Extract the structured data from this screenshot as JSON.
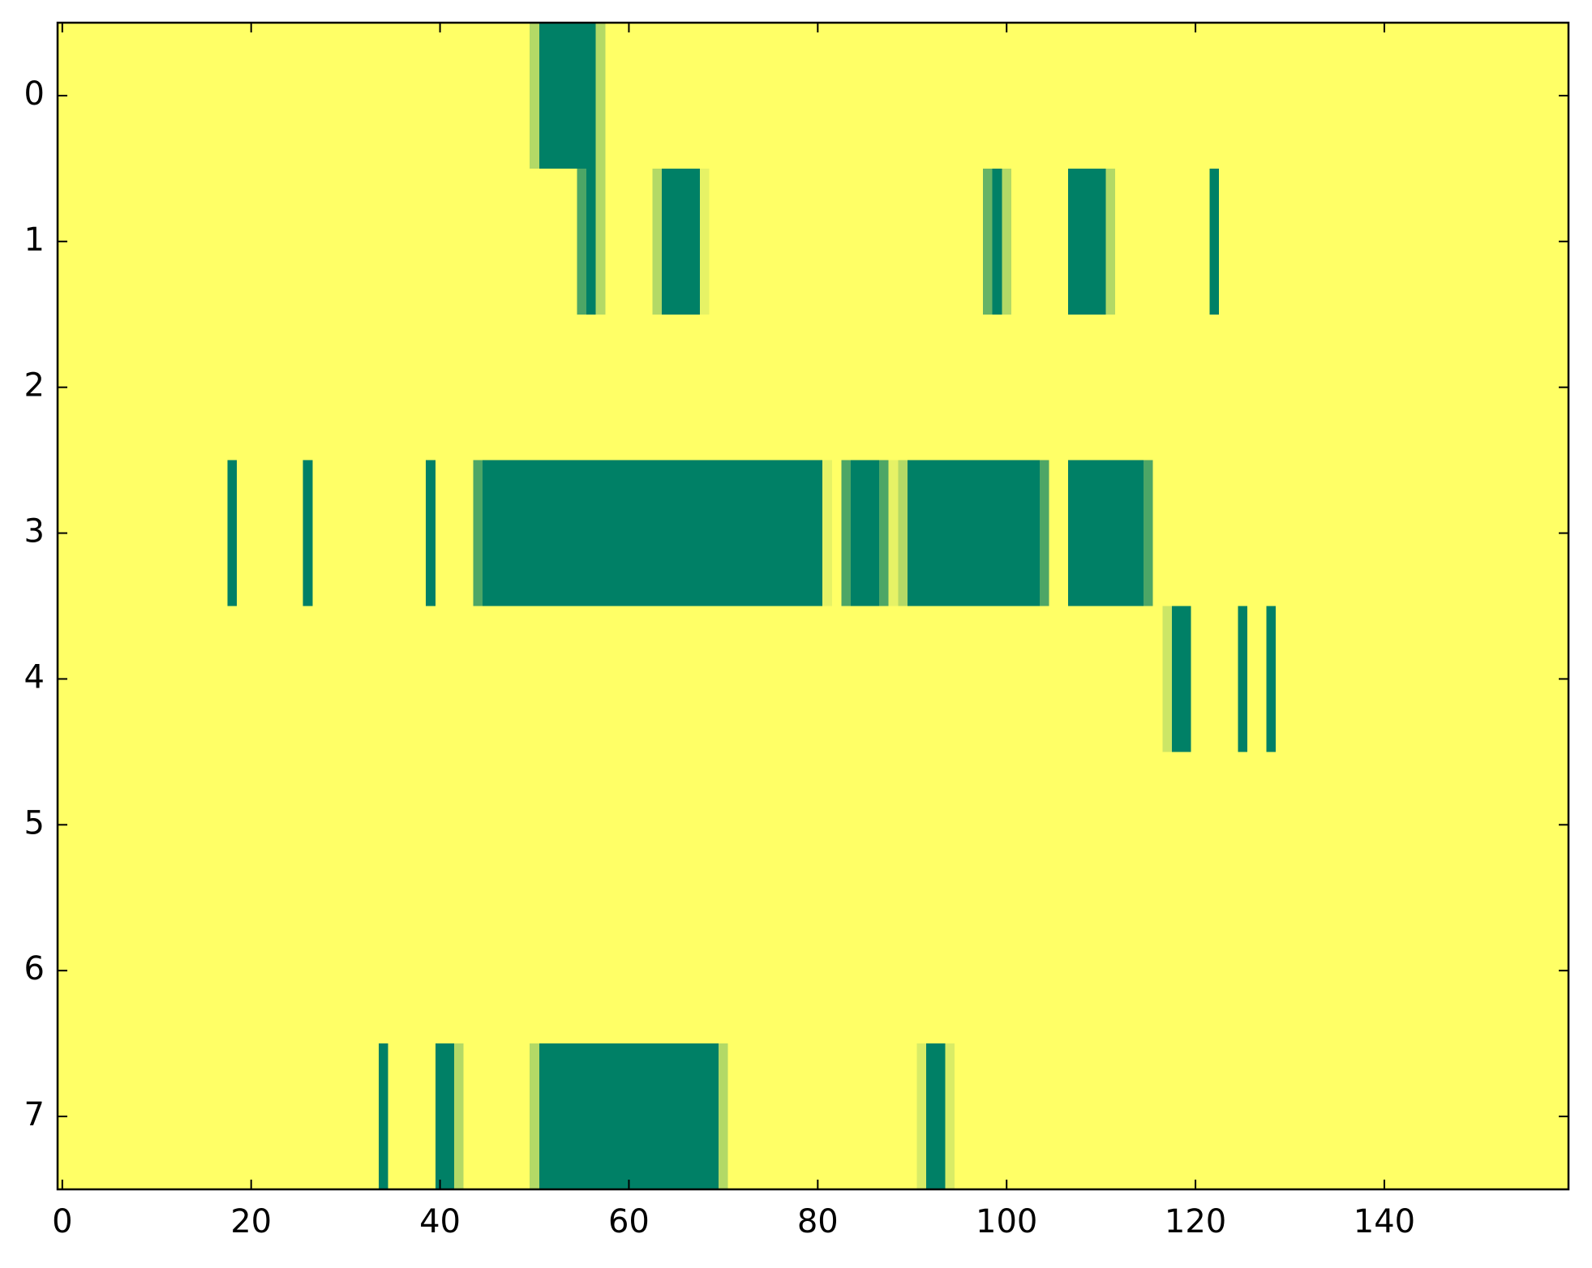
{
  "chart_data": {
    "type": "heatmap",
    "colormap": "summer",
    "xlim": [
      -0.5,
      159.5
    ],
    "ylim": [
      7.5,
      -0.5
    ],
    "xticks": [
      0,
      20,
      40,
      60,
      80,
      100,
      120,
      140
    ],
    "yticks": [
      0,
      1,
      2,
      3,
      4,
      5,
      6,
      7
    ],
    "z": [
      [
        1,
        1,
        1,
        1,
        1,
        1,
        1,
        1,
        1,
        1,
        1,
        1,
        1,
        1,
        1,
        1,
        1,
        1,
        1,
        1,
        1,
        1,
        1,
        1,
        1,
        1,
        1,
        1,
        1,
        1,
        1,
        1,
        1,
        1,
        1,
        1,
        1,
        1,
        1,
        1,
        1,
        1,
        1,
        1,
        1,
        1,
        1,
        1,
        1,
        1,
        0.7,
        0,
        0,
        0,
        0,
        0,
        0,
        0.7,
        1,
        1,
        1,
        1,
        1,
        1,
        1,
        1,
        1,
        1,
        1,
        1,
        1,
        1,
        1,
        1,
        1,
        1,
        1,
        1,
        1,
        1,
        1,
        1,
        1,
        1,
        1,
        1,
        1,
        1,
        1,
        1,
        1,
        1,
        1,
        1,
        1,
        1,
        1,
        1,
        1,
        1,
        1,
        1,
        1,
        1,
        1,
        1,
        1,
        1,
        1,
        1,
        1,
        1,
        1,
        1,
        1,
        1,
        1,
        1,
        1,
        1,
        1,
        1,
        1,
        1,
        1,
        1,
        1,
        1,
        1,
        1,
        1,
        1,
        1,
        1,
        1,
        1,
        1,
        1,
        1,
        1,
        1,
        1,
        1,
        1,
        1,
        1,
        1,
        1,
        1,
        1,
        1,
        1,
        1,
        1,
        1,
        1,
        1,
        1,
        1,
        1
      ],
      [
        1,
        1,
        1,
        1,
        1,
        1,
        1,
        1,
        1,
        1,
        1,
        1,
        1,
        1,
        1,
        1,
        1,
        1,
        1,
        1,
        1,
        1,
        1,
        1,
        1,
        1,
        1,
        1,
        1,
        1,
        1,
        1,
        1,
        1,
        1,
        1,
        1,
        1,
        1,
        1,
        1,
        1,
        1,
        1,
        1,
        1,
        1,
        1,
        1,
        1,
        1,
        1,
        1,
        1,
        1,
        0.3,
        0,
        0.7,
        1,
        1,
        1,
        1,
        1,
        0.7,
        0,
        0,
        0,
        0,
        0.9,
        1,
        1,
        1,
        1,
        1,
        1,
        1,
        1,
        1,
        1,
        1,
        1,
        1,
        1,
        1,
        1,
        1,
        1,
        1,
        1,
        1,
        1,
        1,
        1,
        1,
        1,
        1,
        1,
        1,
        0.4,
        0,
        0.7,
        1,
        1,
        1,
        1,
        1,
        1,
        0,
        0,
        0,
        0,
        0.7,
        1,
        1,
        1,
        1,
        1,
        1,
        1,
        1,
        1,
        1,
        0,
        1,
        1,
        1,
        1,
        1,
        1,
        1,
        1,
        1,
        1,
        1,
        1,
        1,
        1,
        1,
        1,
        1,
        1,
        1,
        1,
        1,
        1,
        1,
        1,
        1,
        1,
        1,
        1,
        1,
        1,
        1,
        1,
        1,
        1,
        1,
        1,
        1
      ],
      [
        1,
        1,
        1,
        1,
        1,
        1,
        1,
        1,
        1,
        1,
        1,
        1,
        1,
        1,
        1,
        1,
        1,
        1,
        1,
        1,
        1,
        1,
        1,
        1,
        1,
        1,
        1,
        1,
        1,
        1,
        1,
        1,
        1,
        1,
        1,
        1,
        1,
        1,
        1,
        1,
        1,
        1,
        1,
        1,
        1,
        1,
        1,
        1,
        1,
        1,
        1,
        1,
        1,
        1,
        1,
        1,
        1,
        1,
        1,
        1,
        1,
        1,
        1,
        1,
        1,
        1,
        1,
        1,
        1,
        1,
        1,
        1,
        1,
        1,
        1,
        1,
        1,
        1,
        1,
        1,
        1,
        1,
        1,
        1,
        1,
        1,
        1,
        1,
        1,
        1,
        1,
        1,
        1,
        1,
        1,
        1,
        1,
        1,
        1,
        1,
        1,
        1,
        1,
        1,
        1,
        1,
        1,
        1,
        1,
        1,
        1,
        1,
        1,
        1,
        1,
        1,
        1,
        1,
        1,
        1,
        1,
        1,
        1,
        1,
        1,
        1,
        1,
        1,
        1,
        1,
        1,
        1,
        1,
        1,
        1,
        1,
        1,
        1,
        1,
        1,
        1,
        1,
        1,
        1,
        1,
        1,
        1,
        1,
        1,
        1,
        1,
        1,
        1,
        1,
        1,
        1,
        1,
        1,
        1,
        1
      ],
      [
        1,
        1,
        1,
        1,
        1,
        1,
        1,
        1,
        1,
        1,
        1,
        1,
        1,
        1,
        1,
        1,
        1,
        1,
        0,
        1,
        1,
        1,
        1,
        1,
        1,
        1,
        0,
        1,
        1,
        1,
        1,
        1,
        1,
        1,
        1,
        1,
        1,
        1,
        1,
        0,
        1,
        1,
        1,
        1,
        0.3,
        0,
        0,
        0,
        0,
        0,
        0,
        0,
        0,
        0,
        0,
        0,
        0,
        0,
        0,
        0,
        0,
        0,
        0,
        0,
        0,
        0,
        0,
        0,
        0,
        0,
        0,
        0,
        0,
        0,
        0,
        0,
        0,
        0,
        0,
        0,
        0,
        0.9,
        1,
        0.3,
        0,
        0,
        0,
        0.3,
        0.9,
        0.7,
        0,
        0,
        0,
        0,
        0,
        0,
        0,
        0,
        0,
        0,
        0,
        0,
        0,
        0,
        0.3,
        1,
        1,
        0,
        0,
        0,
        0,
        0,
        0,
        0,
        0,
        0.3,
        1,
        1,
        1,
        1,
        1,
        1,
        1,
        1,
        1,
        1,
        1,
        1,
        1,
        1,
        1,
        1,
        1,
        1,
        1,
        1,
        1,
        1,
        1,
        1,
        1,
        1,
        1,
        1,
        1,
        1,
        1,
        1,
        1,
        1,
        1,
        1,
        1,
        1,
        1,
        1,
        1,
        1,
        1,
        1
      ],
      [
        1,
        1,
        1,
        1,
        1,
        1,
        1,
        1,
        1,
        1,
        1,
        1,
        1,
        1,
        1,
        1,
        1,
        1,
        1,
        1,
        1,
        1,
        1,
        1,
        1,
        1,
        1,
        1,
        1,
        1,
        1,
        1,
        1,
        1,
        1,
        1,
        1,
        1,
        1,
        1,
        1,
        1,
        1,
        1,
        1,
        1,
        1,
        1,
        1,
        1,
        1,
        1,
        1,
        1,
        1,
        1,
        1,
        1,
        1,
        1,
        1,
        1,
        1,
        1,
        1,
        1,
        1,
        1,
        1,
        1,
        1,
        1,
        1,
        1,
        1,
        1,
        1,
        1,
        1,
        1,
        1,
        1,
        1,
        1,
        1,
        1,
        1,
        1,
        1,
        1,
        1,
        1,
        1,
        1,
        1,
        1,
        1,
        1,
        1,
        1,
        1,
        1,
        1,
        1,
        1,
        1,
        1,
        1,
        1,
        1,
        1,
        1,
        1,
        1,
        1,
        1,
        1,
        0.8,
        0,
        0,
        1,
        1,
        1,
        1,
        1,
        0,
        1,
        1,
        0,
        1,
        1,
        1,
        1,
        1,
        1,
        1,
        1,
        1,
        1,
        1,
        1,
        1,
        1,
        1,
        1,
        1,
        1,
        1,
        1,
        1,
        1,
        1,
        1,
        1,
        1,
        1,
        1,
        1,
        1,
        1
      ],
      [
        1,
        1,
        1,
        1,
        1,
        1,
        1,
        1,
        1,
        1,
        1,
        1,
        1,
        1,
        1,
        1,
        1,
        1,
        1,
        1,
        1,
        1,
        1,
        1,
        1,
        1,
        1,
        1,
        1,
        1,
        1,
        1,
        1,
        1,
        1,
        1,
        1,
        1,
        1,
        1,
        1,
        1,
        1,
        1,
        1,
        1,
        1,
        1,
        1,
        1,
        1,
        1,
        1,
        1,
        1,
        1,
        1,
        1,
        1,
        1,
        1,
        1,
        1,
        1,
        1,
        1,
        1,
        1,
        1,
        1,
        1,
        1,
        1,
        1,
        1,
        1,
        1,
        1,
        1,
        1,
        1,
        1,
        1,
        1,
        1,
        1,
        1,
        1,
        1,
        1,
        1,
        1,
        1,
        1,
        1,
        1,
        1,
        1,
        1,
        1,
        1,
        1,
        1,
        1,
        1,
        1,
        1,
        1,
        1,
        1,
        1,
        1,
        1,
        1,
        1,
        1,
        1,
        1,
        1,
        1,
        1,
        1,
        1,
        1,
        1,
        1,
        1,
        1,
        1,
        1,
        1,
        1,
        1,
        1,
        1,
        1,
        1,
        1,
        1,
        1,
        1,
        1,
        1,
        1,
        1,
        1,
        1,
        1,
        1,
        1,
        1,
        1,
        1,
        1,
        1,
        1,
        1,
        1,
        1,
        1
      ],
      [
        1,
        1,
        1,
        1,
        1,
        1,
        1,
        1,
        1,
        1,
        1,
        1,
        1,
        1,
        1,
        1,
        1,
        1,
        1,
        1,
        1,
        1,
        1,
        1,
        1,
        1,
        1,
        1,
        1,
        1,
        1,
        1,
        1,
        1,
        1,
        1,
        1,
        1,
        1,
        1,
        1,
        1,
        1,
        1,
        1,
        1,
        1,
        1,
        1,
        1,
        1,
        1,
        1,
        1,
        1,
        1,
        1,
        1,
        1,
        1,
        1,
        1,
        1,
        1,
        1,
        1,
        1,
        1,
        1,
        1,
        1,
        1,
        1,
        1,
        1,
        1,
        1,
        1,
        1,
        1,
        1,
        1,
        1,
        1,
        1,
        1,
        1,
        1,
        1,
        1,
        1,
        1,
        1,
        1,
        1,
        1,
        1,
        1,
        1,
        1,
        1,
        1,
        1,
        1,
        1,
        1,
        1,
        1,
        1,
        1,
        1,
        1,
        1,
        1,
        1,
        1,
        1,
        1,
        1,
        1,
        1,
        1,
        1,
        1,
        1,
        1,
        1,
        1,
        1,
        1,
        1,
        1,
        1,
        1,
        1,
        1,
        1,
        1,
        1,
        1,
        1,
        1,
        1,
        1,
        1,
        1,
        1,
        1,
        1,
        1,
        1,
        1,
        1,
        1,
        1,
        1,
        1,
        1,
        1,
        1
      ],
      [
        1,
        1,
        1,
        1,
        1,
        1,
        1,
        1,
        1,
        1,
        1,
        1,
        1,
        1,
        1,
        1,
        1,
        1,
        1,
        1,
        1,
        1,
        1,
        1,
        1,
        1,
        1,
        1,
        1,
        1,
        1,
        1,
        1,
        1,
        0,
        1,
        1,
        1,
        1,
        1,
        0,
        0,
        0.7,
        1,
        1,
        1,
        1,
        1,
        1,
        1,
        0.7,
        0,
        0,
        0,
        0,
        0,
        0,
        0,
        0,
        0,
        0,
        0,
        0,
        0,
        0,
        0,
        0,
        0,
        0,
        0,
        0.7,
        1,
        1,
        1,
        1,
        1,
        1,
        1,
        1,
        1,
        1,
        1,
        1,
        1,
        1,
        1,
        1,
        1,
        1,
        1,
        1,
        0.85,
        0,
        0,
        0.85,
        1,
        1,
        1,
        1,
        1,
        1,
        1,
        1,
        1,
        1,
        1,
        1,
        1,
        1,
        1,
        1,
        1,
        1,
        1,
        1,
        1,
        1,
        1,
        1,
        1,
        1,
        1,
        1,
        1,
        1,
        1,
        1,
        1,
        1,
        1,
        1,
        1,
        1,
        1,
        1,
        1,
        1,
        1,
        1,
        1,
        1,
        1,
        1,
        1,
        1,
        1,
        1,
        1,
        1,
        1,
        1,
        1,
        1,
        1,
        1,
        1,
        1,
        1,
        1,
        1
      ]
    ]
  }
}
